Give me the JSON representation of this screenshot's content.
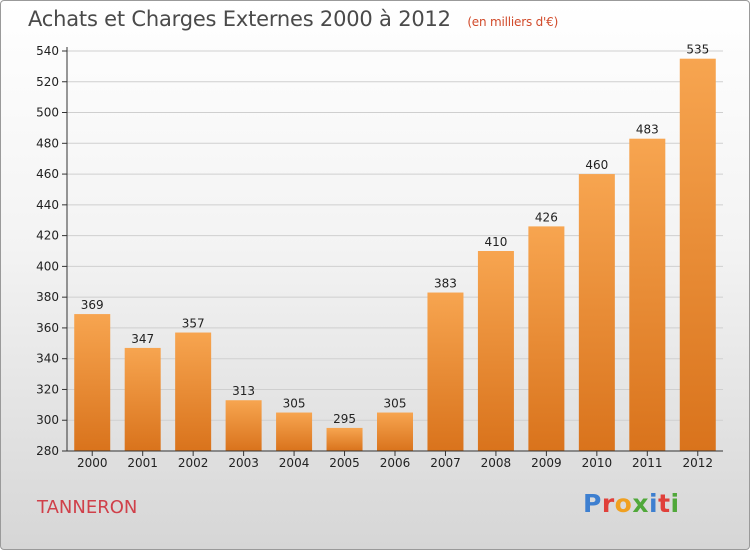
{
  "header": {
    "title": "Achats et Charges Externes 2000 à 2012",
    "subtitle": "(en milliers d'€)"
  },
  "location": "TANNERON",
  "logo": {
    "text": "Proxiti",
    "letters": [
      {
        "ch": "P",
        "color": "#3d7fd0"
      },
      {
        "ch": "r",
        "color": "#e0403a"
      },
      {
        "ch": "o",
        "color": "#f0a020"
      },
      {
        "ch": "x",
        "color": "#50a83a"
      },
      {
        "ch": "i",
        "color": "#3d7fd0"
      },
      {
        "ch": "t",
        "color": "#e0403a"
      },
      {
        "ch": "i",
        "color": "#50a83a"
      }
    ]
  },
  "colors": {
    "bar_top": "#f7a550",
    "bar_bottom": "#d9731c",
    "grid": "#cfcfcf",
    "axis": "#333333"
  },
  "chart_data": {
    "type": "bar",
    "title": "Achats et Charges Externes 2000 à 2012",
    "subtitle": "(en milliers d'€)",
    "categories": [
      "2000",
      "2001",
      "2002",
      "2003",
      "2004",
      "2005",
      "2006",
      "2007",
      "2008",
      "2009",
      "2010",
      "2011",
      "2012"
    ],
    "values": [
      369,
      347,
      357,
      313,
      305,
      295,
      305,
      383,
      410,
      426,
      460,
      483,
      535
    ],
    "ylim": [
      280,
      540
    ],
    "yticks": [
      280,
      300,
      320,
      340,
      360,
      380,
      400,
      420,
      440,
      460,
      480,
      500,
      520,
      540
    ],
    "grid": true,
    "legend": "none",
    "data_labels": true
  }
}
